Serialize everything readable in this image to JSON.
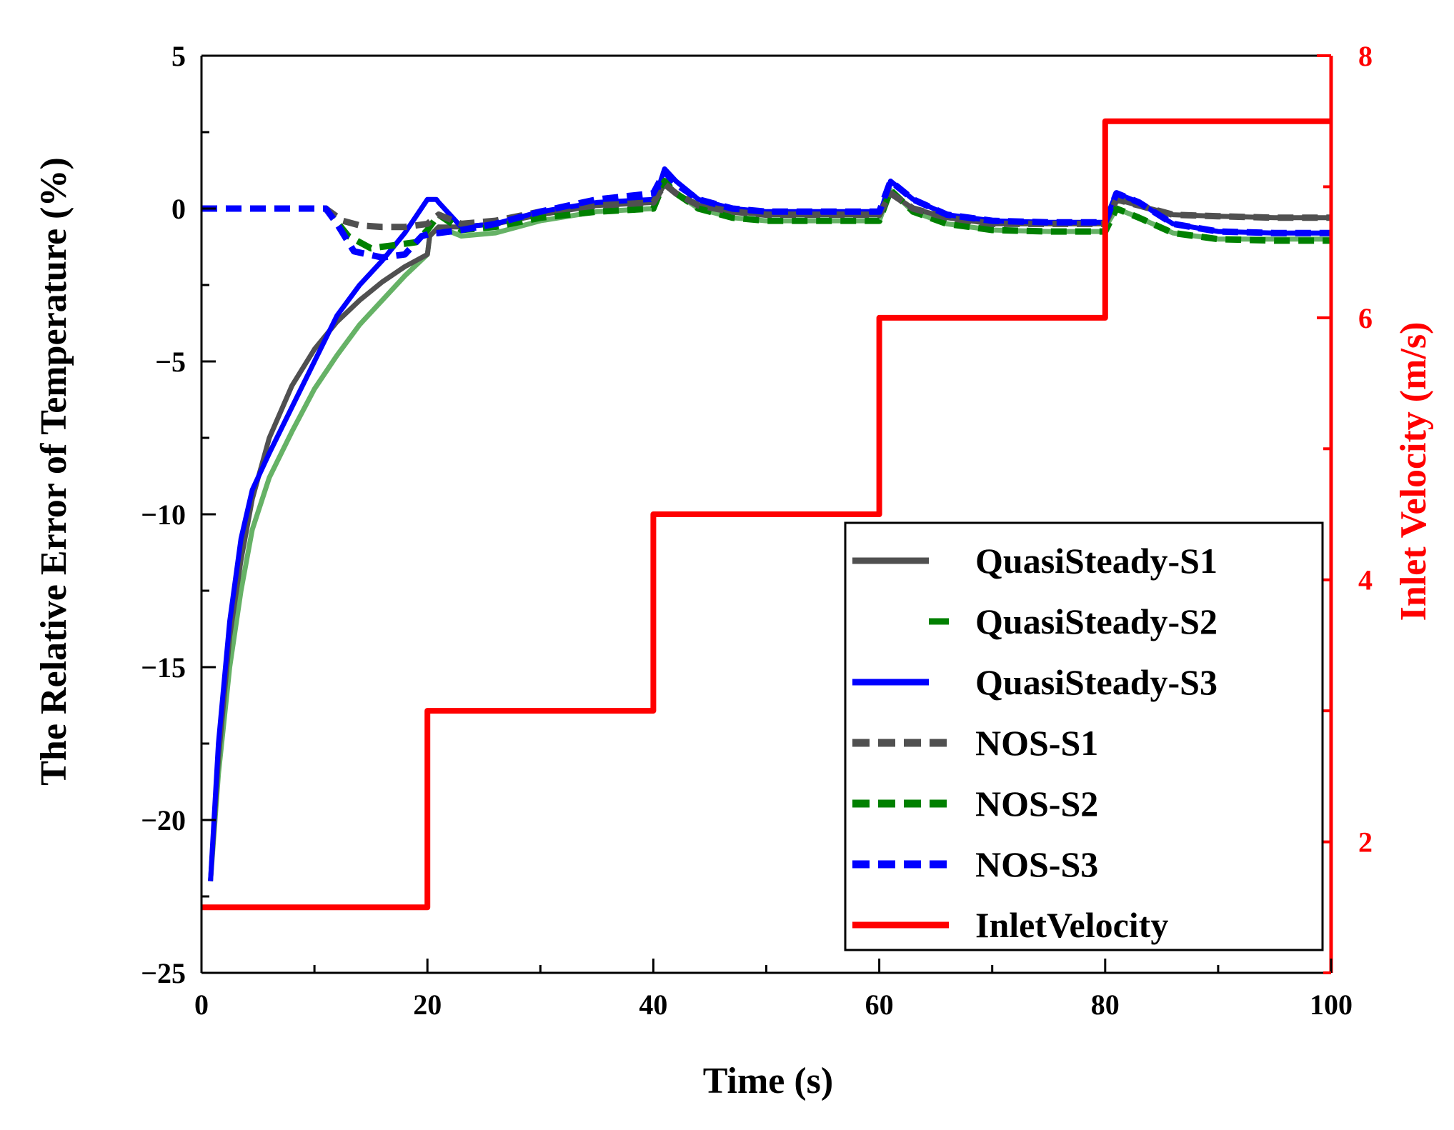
{
  "chart_data": {
    "type": "line",
    "title": "",
    "xlabel": "Time (s)",
    "ylabel": "The Relative Error of  Temperature (%)",
    "y2label": "Inlet Velocity (m/s)",
    "xlim": [
      0,
      100
    ],
    "ylim": [
      -25,
      5
    ],
    "y2lim": [
      1,
      8
    ],
    "xticks": [
      "0",
      "20",
      "40",
      "60",
      "80",
      "100"
    ],
    "xtick_values": [
      0,
      20,
      40,
      60,
      80,
      100
    ],
    "yticks": [
      "−25",
      "−20",
      "−15",
      "−10",
      "−5",
      "0",
      "5"
    ],
    "ytick_values": [
      -25,
      -20,
      -15,
      -10,
      -5,
      0,
      5
    ],
    "y2ticks": [
      "2",
      "4",
      "6",
      "8"
    ],
    "y2tick_values": [
      2,
      4,
      6,
      8
    ],
    "colors": {
      "gray": "#505050",
      "green": "#008000",
      "green_light": "#66b266",
      "blue": "#0000ff",
      "red": "#ff0000",
      "axis": "#000000"
    },
    "series": [
      {
        "name": "QuasiSteady-S1",
        "axis": "left",
        "style": "solid",
        "color": "#505050",
        "x": [
          0.8,
          1.5,
          2.5,
          3.5,
          4.5,
          6,
          8,
          10,
          12,
          14,
          16,
          18,
          20,
          20.2,
          21,
          23,
          26,
          30,
          35,
          40,
          40.2,
          41,
          42,
          44,
          47,
          50,
          55,
          60,
          60.2,
          61,
          63,
          66,
          70,
          75,
          80,
          80.2,
          81,
          83,
          86,
          90,
          95,
          100
        ],
        "y": [
          -22,
          -18,
          -14,
          -11.5,
          -9.5,
          -7.5,
          -5.8,
          -4.6,
          -3.7,
          -3.0,
          -2.4,
          -1.9,
          -1.5,
          -0.9,
          -0.6,
          -0.6,
          -0.5,
          -0.2,
          0.1,
          0.2,
          0.3,
          0.8,
          0.5,
          0.1,
          -0.1,
          -0.2,
          -0.2,
          -0.2,
          -0.1,
          0.5,
          0.0,
          -0.3,
          -0.5,
          -0.5,
          -0.5,
          -0.3,
          0.3,
          0.1,
          -0.2,
          -0.25,
          -0.3,
          -0.3
        ]
      },
      {
        "name": "QuasiSteady-S2",
        "axis": "left",
        "style": "solid",
        "color": "#66b266",
        "x": [
          0.8,
          1.5,
          2.5,
          3.5,
          4.5,
          6,
          8,
          10,
          12,
          14,
          16,
          18,
          20,
          20.2,
          21,
          23,
          26,
          30,
          35,
          40,
          40.2,
          41,
          42,
          44,
          47,
          50,
          55,
          60,
          60.2,
          61,
          63,
          66,
          70,
          75,
          80,
          80.2,
          81,
          83,
          86,
          90,
          95,
          100
        ],
        "y": [
          -22,
          -18.5,
          -15,
          -12.5,
          -10.5,
          -8.8,
          -7.3,
          -5.9,
          -4.8,
          -3.8,
          -3.0,
          -2.2,
          -1.5,
          -0.9,
          -0.6,
          -0.9,
          -0.8,
          -0.4,
          -0.1,
          0.0,
          0.2,
          0.9,
          0.5,
          0.0,
          -0.3,
          -0.4,
          -0.4,
          -0.4,
          -0.2,
          0.6,
          -0.1,
          -0.5,
          -0.7,
          -0.75,
          -0.75,
          -0.5,
          0.0,
          -0.3,
          -0.8,
          -1.0,
          -1.0,
          -1.0
        ]
      },
      {
        "name": "QuasiSteady-S3",
        "axis": "left",
        "style": "solid",
        "color": "#0000ff",
        "x": [
          0.8,
          1.5,
          2.5,
          3.5,
          4.5,
          6,
          8,
          10,
          12,
          14,
          16,
          18,
          20,
          20.8,
          21,
          23,
          26,
          30,
          35,
          40,
          40.2,
          41,
          42,
          44,
          47,
          50,
          55,
          60,
          60.2,
          61,
          63,
          66,
          70,
          75,
          80,
          80.2,
          81,
          83,
          86,
          90,
          95,
          100
        ],
        "y": [
          -22,
          -17.5,
          -13.5,
          -10.8,
          -9.2,
          -8.0,
          -6.5,
          -5.0,
          -3.5,
          -2.5,
          -1.7,
          -0.8,
          0.3,
          0.3,
          0.2,
          -0.6,
          -0.5,
          -0.1,
          0.2,
          0.3,
          0.4,
          1.3,
          0.9,
          0.3,
          0.0,
          -0.1,
          -0.1,
          -0.1,
          0.0,
          0.9,
          0.3,
          -0.2,
          -0.4,
          -0.45,
          -0.45,
          -0.2,
          0.5,
          0.2,
          -0.5,
          -0.75,
          -0.8,
          -0.8
        ]
      },
      {
        "name": "NOS-S1",
        "axis": "left",
        "style": "dashed",
        "color": "#505050",
        "x": [
          0,
          5,
          11,
          12.5,
          14,
          16,
          18,
          20,
          21,
          23,
          26,
          30,
          35,
          40,
          41,
          42,
          44,
          47,
          50,
          55,
          60,
          61,
          63,
          66,
          70,
          75,
          80,
          81,
          83,
          86,
          90,
          95,
          100
        ],
        "y": [
          0.0,
          0.0,
          0.0,
          -0.4,
          -0.55,
          -0.6,
          -0.6,
          -0.5,
          -0.2,
          -0.5,
          -0.4,
          -0.1,
          0.1,
          0.2,
          0.8,
          0.5,
          0.1,
          -0.1,
          -0.2,
          -0.2,
          -0.2,
          0.5,
          0.0,
          -0.3,
          -0.5,
          -0.5,
          -0.5,
          0.3,
          0.1,
          -0.2,
          -0.25,
          -0.3,
          -0.3
        ]
      },
      {
        "name": "NOS-S2",
        "axis": "left",
        "style": "dashed",
        "color": "#008000",
        "x": [
          0,
          5,
          11,
          13,
          15,
          17,
          19,
          20,
          21,
          23,
          26,
          30,
          35,
          40,
          41,
          42,
          44,
          47,
          50,
          55,
          60,
          61,
          63,
          66,
          70,
          75,
          80,
          81,
          83,
          86,
          90,
          95,
          100
        ],
        "y": [
          0.0,
          0.0,
          0.0,
          -0.9,
          -1.3,
          -1.2,
          -1.1,
          -0.7,
          -0.2,
          -0.7,
          -0.6,
          -0.3,
          -0.1,
          0.0,
          0.9,
          0.5,
          0.0,
          -0.3,
          -0.4,
          -0.4,
          -0.4,
          0.6,
          -0.1,
          -0.5,
          -0.7,
          -0.75,
          -0.75,
          0.0,
          -0.3,
          -0.8,
          -1.0,
          -1.05,
          -1.05
        ]
      },
      {
        "name": "NOS-S3",
        "axis": "left",
        "style": "dashed",
        "color": "#0000ff",
        "x": [
          0,
          5,
          11,
          12,
          13.5,
          16,
          18,
          19.5,
          20.5,
          21,
          23,
          26,
          30,
          35,
          40,
          41,
          42,
          44,
          47,
          50,
          55,
          60,
          61,
          63,
          66,
          70,
          75,
          80,
          81,
          83,
          86,
          90,
          95,
          100
        ],
        "y": [
          0.0,
          0.0,
          0.0,
          -0.5,
          -1.4,
          -1.6,
          -1.5,
          -0.9,
          -0.8,
          -0.8,
          -0.7,
          -0.5,
          -0.1,
          0.3,
          0.5,
          1.2,
          0.8,
          0.3,
          0.0,
          -0.1,
          -0.1,
          -0.1,
          0.9,
          0.3,
          -0.2,
          -0.4,
          -0.45,
          -0.45,
          0.5,
          0.2,
          -0.5,
          -0.75,
          -0.8,
          -0.8
        ]
      },
      {
        "name": "InletVelocity",
        "axis": "right",
        "style": "solid",
        "color": "#ff0000",
        "x": [
          0,
          20,
          20,
          40,
          40,
          60,
          60,
          80,
          80,
          100
        ],
        "y": [
          1.5,
          1.5,
          3.0,
          3.0,
          4.5,
          4.5,
          6.0,
          6.0,
          7.5,
          7.5
        ]
      }
    ],
    "legend": {
      "placement": "bottom-right",
      "entries": [
        "QuasiSteady-S1",
        "QuasiSteady-S2",
        "QuasiSteady-S3",
        "NOS-S1",
        "NOS-S2",
        "NOS-S3",
        "InletVelocity"
      ]
    }
  }
}
